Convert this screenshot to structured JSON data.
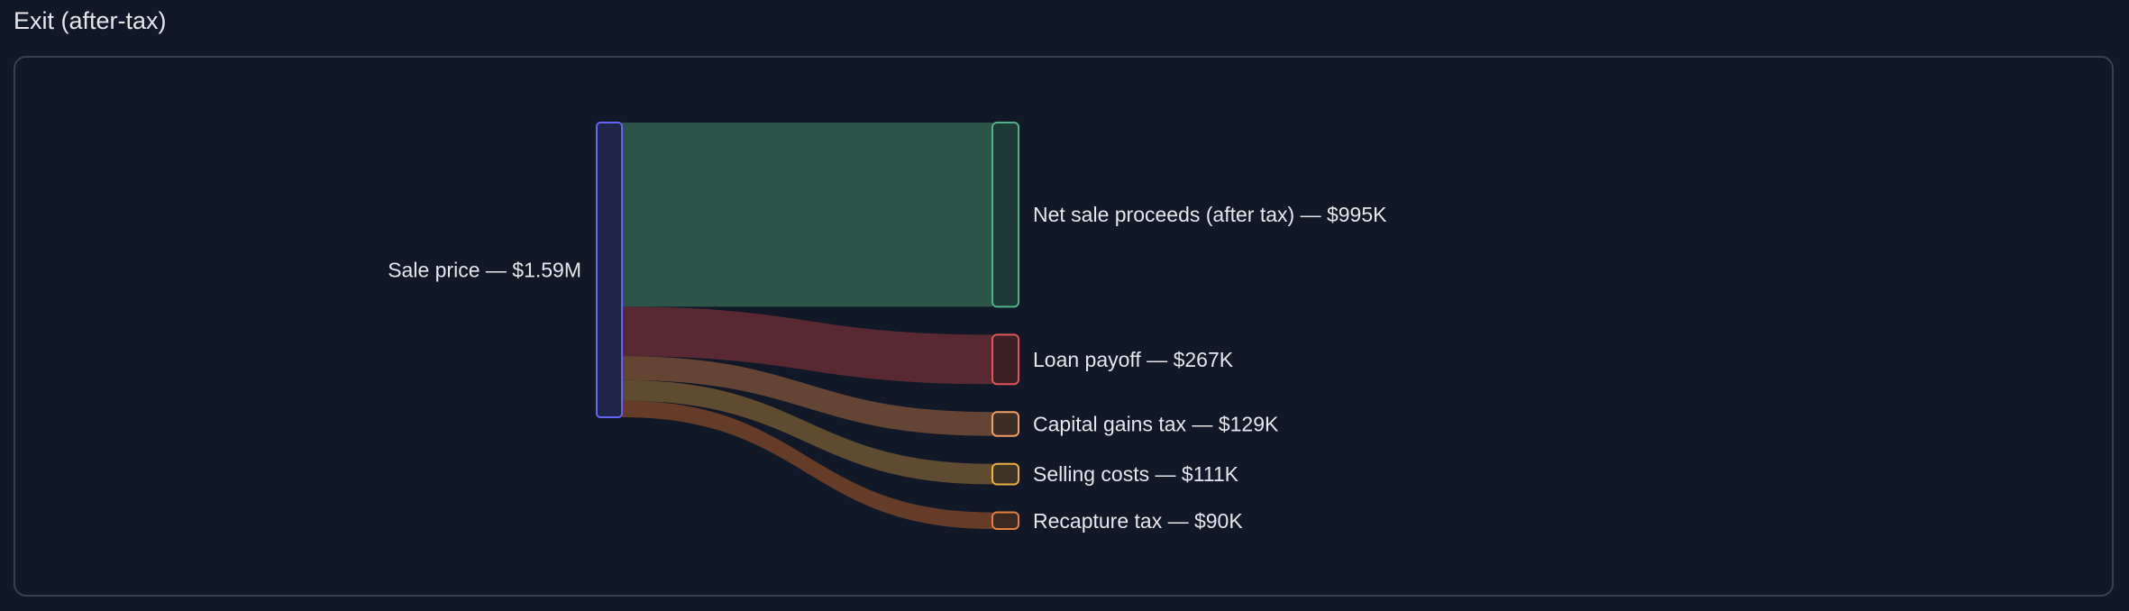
{
  "title": "Exit (after-tax)",
  "chart_data": {
    "type": "sankey",
    "units": "USD thousands",
    "source": {
      "name": "Sale price",
      "label": "Sale price — $1.59M",
      "value": 1592,
      "color": "#6366f1",
      "fill": "#1f2547"
    },
    "targets": [
      {
        "name": "Net sale proceeds (after tax)",
        "label": "Net sale proceeds (after tax) — $995K",
        "value": 995,
        "stroke": "#4fb38a",
        "fill": "#1e3a36",
        "link": "#2f5a4c"
      },
      {
        "name": "Loan payoff",
        "label": "Loan payoff — $267K",
        "value": 267,
        "stroke": "#e05555",
        "fill": "#3d1f27",
        "link": "#5e2b34"
      },
      {
        "name": "Capital gains tax",
        "label": "Capital gains tax — $129K",
        "value": 129,
        "stroke": "#f0a060",
        "fill": "#3d2e27",
        "link": "#6b4a34"
      },
      {
        "name": "Selling costs",
        "label": "Selling costs — $111K",
        "value": 111,
        "stroke": "#f0b040",
        "fill": "#3b3323",
        "link": "#665030"
      },
      {
        "name": "Recapture tax",
        "label": "Recapture tax — $90K",
        "value": 90,
        "stroke": "#e58040",
        "fill": "#3b2a22",
        "link": "#6b4028"
      }
    ]
  }
}
